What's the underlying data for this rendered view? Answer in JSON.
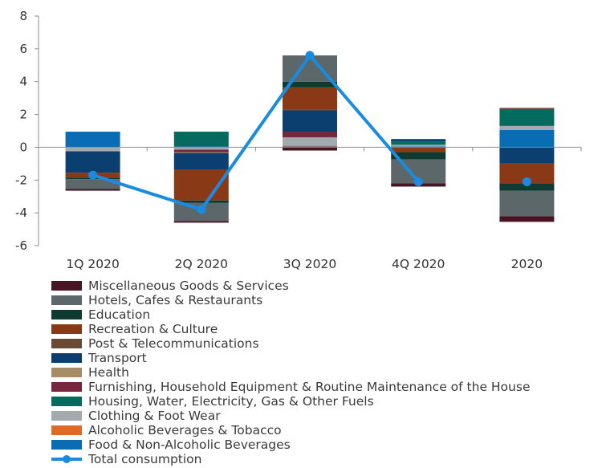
{
  "chart_data": {
    "type": "bar",
    "categories": [
      "1Q 2020",
      "2Q 2020",
      "3Q 2020",
      "4Q 2020",
      "2020"
    ],
    "ylim": [
      -6,
      8
    ],
    "yticks": [
      "8",
      "6",
      "4",
      "2",
      "0",
      "-2",
      "-4",
      "-6"
    ],
    "grid": false,
    "legend_position": "bottom",
    "series": [
      {
        "name": "Food & Non-Alcoholic Beverages",
        "color": "#0a6cb5",
        "values": [
          0.95,
          0.05,
          0.05,
          0.05,
          1.05
        ]
      },
      {
        "name": "Alcoholic Beverages & Tobacco",
        "color": "#e06a26",
        "values": [
          0.0,
          0.0,
          0.05,
          0.0,
          0.0
        ]
      },
      {
        "name": "Clothing & Foot Wear",
        "color": "#a2aaad",
        "values": [
          -0.25,
          -0.15,
          0.5,
          0.1,
          0.25
        ]
      },
      {
        "name": "Housing, Water, Electricity, Gas & Other Fuels",
        "color": "#056b5e",
        "values": [
          0.0,
          0.9,
          0.0,
          0.2,
          1.0
        ]
      },
      {
        "name": "Furnishing, Household Equipment & Routine Maintenance of the House",
        "color": "#77263f",
        "values": [
          0.0,
          -0.15,
          0.35,
          0.0,
          0.05
        ]
      },
      {
        "name": "Health",
        "color": "#a88c66",
        "values": [
          0.0,
          -0.05,
          0.0,
          0.0,
          0.0
        ]
      },
      {
        "name": "Transport",
        "color": "#0b3f70",
        "values": [
          -1.3,
          -1.0,
          1.3,
          0.15,
          -1.0
        ]
      },
      {
        "name": "Post & Telecommunications",
        "color": "#6b4a33",
        "values": [
          0.0,
          0.0,
          0.05,
          0.0,
          0.05
        ]
      },
      {
        "name": "Recreation & Culture",
        "color": "#8a3916",
        "values": [
          -0.3,
          -1.9,
          1.35,
          -0.3,
          -1.2
        ]
      },
      {
        "name": "Education",
        "color": "#0e3a32",
        "values": [
          -0.1,
          -0.15,
          0.35,
          -0.45,
          -0.45
        ]
      },
      {
        "name": "Hotels, Cafes & Restaurants",
        "color": "#5c676a",
        "values": [
          -0.6,
          -1.1,
          1.6,
          -1.45,
          -1.55
        ]
      },
      {
        "name": "Miscellaneous Goods & Services",
        "color": "#4a1523",
        "values": [
          -0.1,
          -0.1,
          -0.2,
          -0.2,
          -0.35
        ]
      }
    ],
    "line": {
      "name": "Total consumption",
      "color": "#1a8be0",
      "values": [
        -1.7,
        -3.8,
        5.6,
        -2.1,
        -2.1
      ]
    }
  }
}
